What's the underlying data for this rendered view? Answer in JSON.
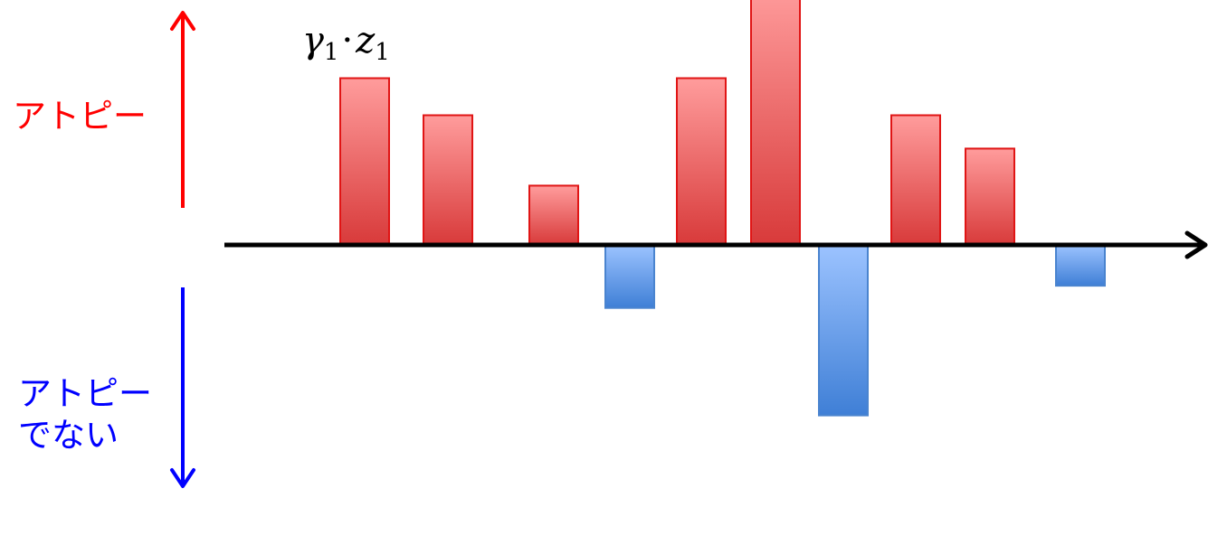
{
  "chart_data": {
    "type": "bar",
    "title": "",
    "xlabel": "",
    "ylabel": "",
    "values": [
      4.5,
      3.5,
      1.6,
      -1.7,
      4.5,
      7.0,
      -4.6,
      3.5,
      2.6,
      -1.1
    ],
    "ylim": [
      -8,
      8
    ],
    "grid": false,
    "legend": "none",
    "colors": {
      "positive": "#ff8e8e",
      "positive_dark": "#d83a3a",
      "positive_edge": "#e01515",
      "negative": "#9cc3ff",
      "negative_dark": "#3f7fd6",
      "negative_edge": "#4a84cf",
      "axis": "#000000",
      "up_arrow": "#ff0000",
      "down_arrow": "#0000ff"
    },
    "annotation": {
      "symbol": "γ",
      "symbol_sub": "1",
      "operator": "·",
      "variable": "z",
      "variable_sub": "1"
    }
  },
  "labels": {
    "positive": "アトピー",
    "negative_line1": "アトピー",
    "negative_line2": "でない"
  }
}
